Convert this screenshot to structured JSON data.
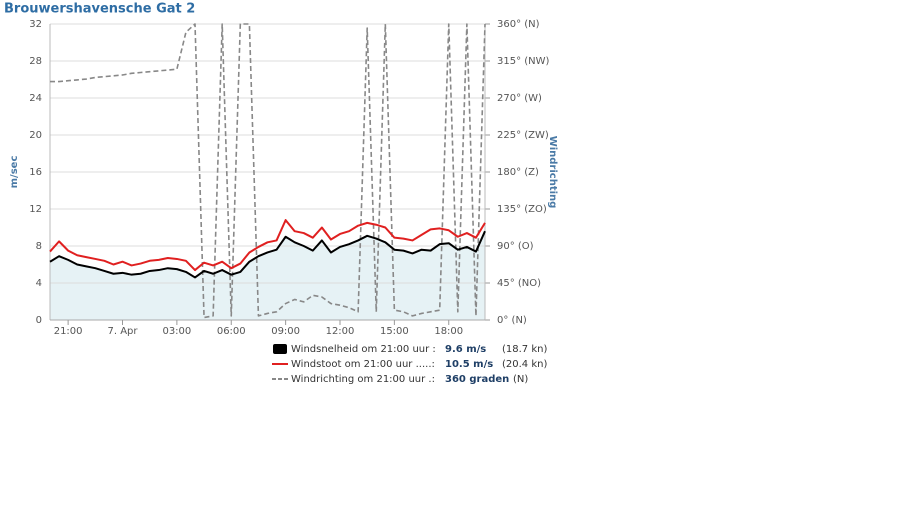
{
  "chart_data": {
    "type": "line",
    "title": "Brouwershavensche Gat 2",
    "ylabel": "m/sec",
    "y2label": "Windrichting",
    "x": [
      "20:00",
      "20:30",
      "21:00",
      "21:30",
      "22:00",
      "22:30",
      "23:00",
      "23:30",
      "00:00",
      "00:30",
      "01:00",
      "01:30",
      "02:00",
      "02:30",
      "03:00",
      "03:30",
      "04:00",
      "04:30",
      "05:00",
      "05:30",
      "06:00",
      "06:30",
      "07:00",
      "07:30",
      "08:00",
      "08:30",
      "09:00",
      "09:30",
      "10:00",
      "10:30",
      "11:00",
      "11:30",
      "12:00",
      "12:30",
      "13:00",
      "13:30",
      "14:00",
      "14:30",
      "15:00",
      "15:30",
      "16:00",
      "16:30",
      "17:00",
      "17:30",
      "18:00",
      "18:30",
      "19:00",
      "19:30",
      "20:00"
    ],
    "series": [
      {
        "name": "Windsnelheid om 21:00 uur :",
        "color": "#000000",
        "fill": "#e6f2f5",
        "dash": false,
        "values": [
          6.3,
          6.9,
          6.5,
          6.0,
          5.8,
          5.6,
          5.3,
          5.0,
          5.1,
          4.9,
          5.0,
          5.3,
          5.4,
          5.6,
          5.5,
          5.2,
          4.6,
          5.3,
          5.0,
          5.4,
          4.9,
          5.2,
          6.3,
          6.9,
          7.3,
          7.6,
          9.0,
          8.4,
          8.0,
          7.5,
          8.6,
          7.3,
          7.9,
          8.2,
          8.6,
          9.1,
          8.8,
          8.4,
          7.6,
          7.5,
          7.2,
          7.6,
          7.5,
          8.2,
          8.3,
          7.6,
          7.9,
          7.4,
          9.6
        ]
      },
      {
        "name": "Windstoot om 21:00 uur .....:",
        "color": "#e02020",
        "dash": false,
        "values": [
          7.4,
          8.5,
          7.5,
          7.0,
          6.8,
          6.6,
          6.4,
          6.0,
          6.3,
          5.9,
          6.1,
          6.4,
          6.5,
          6.7,
          6.6,
          6.4,
          5.4,
          6.2,
          5.9,
          6.3,
          5.6,
          6.1,
          7.3,
          7.9,
          8.4,
          8.6,
          10.8,
          9.6,
          9.4,
          8.9,
          10.0,
          8.7,
          9.3,
          9.6,
          10.2,
          10.5,
          10.3,
          10.0,
          8.9,
          8.8,
          8.6,
          9.2,
          9.8,
          9.9,
          9.7,
          9.0,
          9.4,
          8.9,
          10.5
        ]
      },
      {
        "name": "Windrichting om 21:00 uur .:",
        "color": "#888888",
        "dash": true,
        "axis": "y2",
        "values": [
          290,
          290,
          291,
          292,
          293,
          295,
          296,
          297,
          298,
          300,
          301,
          302,
          303,
          304,
          305,
          350,
          360,
          3,
          5,
          360,
          5,
          360,
          360,
          5,
          8,
          10,
          20,
          25,
          22,
          30,
          28,
          20,
          18,
          15,
          10,
          355,
          10,
          360,
          12,
          10,
          5,
          8,
          10,
          12,
          360,
          10,
          360,
          5,
          360
        ]
      }
    ],
    "legend_details": [
      [
        "9.6 m/s",
        "(18.7 kn)"
      ],
      [
        "10.5 m/s",
        "(20.4 kn)"
      ],
      [
        "360 graden",
        "(N)"
      ]
    ],
    "ylim": [
      0,
      32
    ],
    "yticks": [
      0,
      4,
      8,
      12,
      16,
      20,
      24,
      28,
      32
    ],
    "y2lim": [
      0,
      360
    ],
    "y2ticks": [
      {
        "value": 0,
        "label": "0° (N)"
      },
      {
        "value": 45,
        "label": "45° (NO)"
      },
      {
        "value": 90,
        "label": "90° (O)"
      },
      {
        "value": 135,
        "label": "135° (ZO)"
      },
      {
        "value": 180,
        "label": "180° (Z)"
      },
      {
        "value": 225,
        "label": "225° (ZW)"
      },
      {
        "value": 270,
        "label": "270° (W)"
      },
      {
        "value": 315,
        "label": "315° (NW)"
      },
      {
        "value": 360,
        "label": "360° (N)"
      }
    ],
    "xticks": [
      {
        "value": "21:00",
        "label": "21:00"
      },
      {
        "value": "00:00",
        "label": "7. Apr"
      },
      {
        "value": "03:00",
        "label": "03:00"
      },
      {
        "value": "06:00",
        "label": "06:00"
      },
      {
        "value": "09:00",
        "label": "09:00"
      },
      {
        "value": "12:00",
        "label": "12:00"
      },
      {
        "value": "15:00",
        "label": "15:00"
      },
      {
        "value": "18:00",
        "label": "18:00"
      }
    ],
    "grid": true
  }
}
